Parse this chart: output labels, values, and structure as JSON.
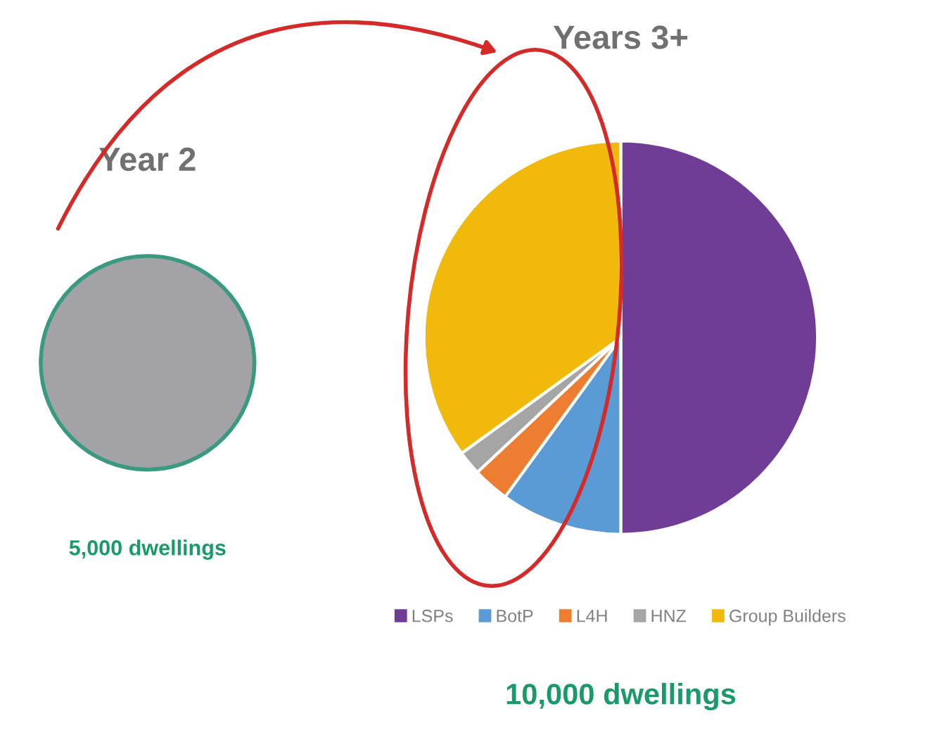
{
  "chart_data": [
    {
      "type": "pie",
      "title": "Year 2",
      "categories": [
        null
      ],
      "values": [
        100
      ],
      "colors": [
        "#a3a2a6"
      ],
      "annotations": [
        "5,000 dwellings"
      ],
      "legend": false
    },
    {
      "type": "pie",
      "title": "Years 3+",
      "categories": [
        "LSPs",
        "BotP",
        "L4H",
        "HNZ",
        "Group Builders"
      ],
      "values": [
        50,
        10,
        3,
        2,
        35
      ],
      "colors": [
        "#6f3c96",
        "#5b9bd5",
        "#ed7d31",
        "#a5a5a5",
        "#f0b90c"
      ],
      "annotations": [
        "10,000 dwellings"
      ],
      "legend": "bottom"
    }
  ]
}
